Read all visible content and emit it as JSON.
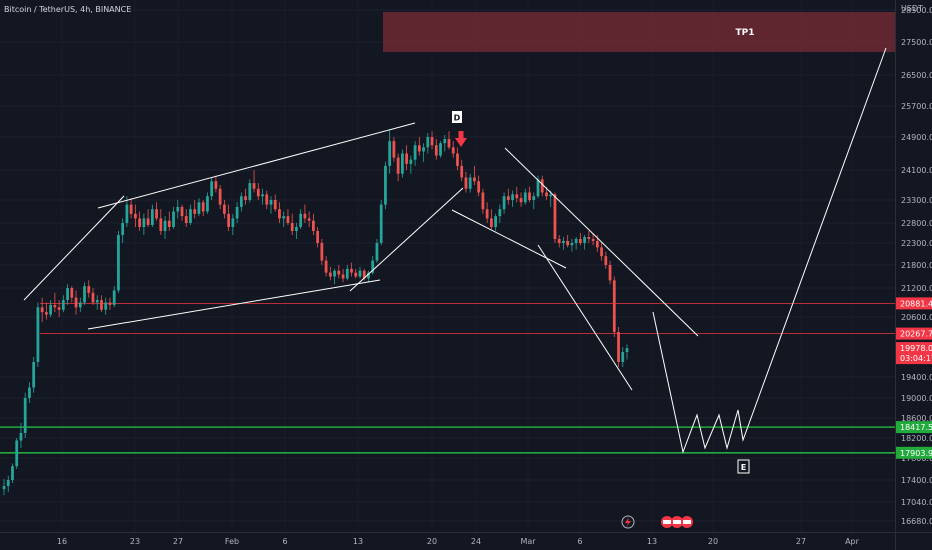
{
  "chart_data": {
    "type": "candlestick",
    "title": "Bitcoin / TetherUS, 4h, BINANCE",
    "y_unit": "USDT",
    "y_ticks": [
      16680,
      17040,
      17400,
      17800,
      18200,
      18600,
      19000,
      19400,
      20600,
      21200,
      21800,
      22300,
      22800,
      23300,
      24100,
      24900,
      25700,
      26500,
      27500,
      28300
    ],
    "x_ticks": [
      "16",
      "23",
      "27",
      "Feb",
      "6",
      "13",
      "20",
      "24",
      "Mar",
      "6",
      "13",
      "20",
      "27",
      "Apr"
    ],
    "price_lines": [
      {
        "label": "20881.45",
        "value": 20881.45,
        "color": "#f23645"
      },
      {
        "label": "20267.78",
        "value": 20267.78,
        "color": "#f23645"
      },
      {
        "label": "18417.53",
        "value": 18417.53,
        "color": "#22ab3c"
      },
      {
        "label": "17903.96",
        "value": 17903.96,
        "color": "#22ab3c"
      }
    ],
    "last_price": {
      "value": 19978.0,
      "label": "19978.00",
      "countdown": "03:04:17"
    },
    "tp_zone": {
      "label": "TP1",
      "low": 27200,
      "high": 28250
    },
    "annotations": [
      "D",
      "E"
    ],
    "candles": [
      {
        "o": 17250,
        "h": 17420,
        "l": 17150,
        "c": 17300
      },
      {
        "o": 17300,
        "h": 17480,
        "l": 17200,
        "c": 17400
      },
      {
        "o": 17400,
        "h": 17700,
        "l": 17350,
        "c": 17650
      },
      {
        "o": 17650,
        "h": 18200,
        "l": 17600,
        "c": 18150
      },
      {
        "o": 18150,
        "h": 18500,
        "l": 18000,
        "c": 18300
      },
      {
        "o": 18300,
        "h": 19100,
        "l": 18200,
        "c": 19000
      },
      {
        "o": 19000,
        "h": 19300,
        "l": 18900,
        "c": 19200
      },
      {
        "o": 19200,
        "h": 19800,
        "l": 19100,
        "c": 19700
      },
      {
        "o": 19700,
        "h": 20900,
        "l": 19600,
        "c": 20800
      },
      {
        "o": 20800,
        "h": 21000,
        "l": 20500,
        "c": 20700
      },
      {
        "o": 20700,
        "h": 20900,
        "l": 20550,
        "c": 20650
      },
      {
        "o": 20650,
        "h": 20950,
        "l": 20600,
        "c": 20850
      },
      {
        "o": 20850,
        "h": 21100,
        "l": 20700,
        "c": 20800
      },
      {
        "o": 20800,
        "h": 20950,
        "l": 20600,
        "c": 20750
      },
      {
        "o": 20750,
        "h": 21050,
        "l": 20700,
        "c": 20950
      },
      {
        "o": 20950,
        "h": 21300,
        "l": 20850,
        "c": 21200
      },
      {
        "o": 21200,
        "h": 21250,
        "l": 20900,
        "c": 21000
      },
      {
        "o": 21000,
        "h": 21150,
        "l": 20650,
        "c": 20800
      },
      {
        "o": 20800,
        "h": 21000,
        "l": 20700,
        "c": 20900
      },
      {
        "o": 20900,
        "h": 21350,
        "l": 20850,
        "c": 21250
      },
      {
        "o": 21250,
        "h": 21400,
        "l": 21000,
        "c": 21100
      },
      {
        "o": 21100,
        "h": 21200,
        "l": 20850,
        "c": 20900
      },
      {
        "o": 20900,
        "h": 21050,
        "l": 20750,
        "c": 20950
      },
      {
        "o": 20950,
        "h": 21050,
        "l": 20700,
        "c": 20750
      },
      {
        "o": 20750,
        "h": 21000,
        "l": 20650,
        "c": 20900
      },
      {
        "o": 20900,
        "h": 21000,
        "l": 20750,
        "c": 20850
      },
      {
        "o": 20850,
        "h": 21250,
        "l": 20800,
        "c": 21150
      },
      {
        "o": 21150,
        "h": 22600,
        "l": 21100,
        "c": 22500
      },
      {
        "o": 22500,
        "h": 22900,
        "l": 22300,
        "c": 22800
      },
      {
        "o": 22800,
        "h": 23400,
        "l": 22700,
        "c": 23200
      },
      {
        "o": 23200,
        "h": 23350,
        "l": 22900,
        "c": 23000
      },
      {
        "o": 23000,
        "h": 23200,
        "l": 22700,
        "c": 22900
      },
      {
        "o": 22900,
        "h": 23050,
        "l": 22600,
        "c": 22700
      },
      {
        "o": 22700,
        "h": 23000,
        "l": 22500,
        "c": 22900
      },
      {
        "o": 22900,
        "h": 23100,
        "l": 22700,
        "c": 22750
      },
      {
        "o": 22750,
        "h": 23200,
        "l": 22700,
        "c": 23100
      },
      {
        "o": 23100,
        "h": 23250,
        "l": 22850,
        "c": 22900
      },
      {
        "o": 22900,
        "h": 23100,
        "l": 22500,
        "c": 22600
      },
      {
        "o": 22600,
        "h": 22950,
        "l": 22400,
        "c": 22850
      },
      {
        "o": 22850,
        "h": 23050,
        "l": 22600,
        "c": 22700
      },
      {
        "o": 22700,
        "h": 23150,
        "l": 22650,
        "c": 23050
      },
      {
        "o": 23050,
        "h": 23300,
        "l": 22900,
        "c": 23150
      },
      {
        "o": 23150,
        "h": 23200,
        "l": 22850,
        "c": 22950
      },
      {
        "o": 22950,
        "h": 23100,
        "l": 22700,
        "c": 22800
      },
      {
        "o": 22800,
        "h": 23200,
        "l": 22750,
        "c": 23100
      },
      {
        "o": 23100,
        "h": 23300,
        "l": 22900,
        "c": 23000
      },
      {
        "o": 23000,
        "h": 23350,
        "l": 22950,
        "c": 23250
      },
      {
        "o": 23250,
        "h": 23300,
        "l": 22950,
        "c": 23050
      },
      {
        "o": 23050,
        "h": 23500,
        "l": 23000,
        "c": 23400
      },
      {
        "o": 23400,
        "h": 23900,
        "l": 23300,
        "c": 23800
      },
      {
        "o": 23800,
        "h": 23950,
        "l": 23500,
        "c": 23600
      },
      {
        "o": 23600,
        "h": 23700,
        "l": 23100,
        "c": 23200
      },
      {
        "o": 23200,
        "h": 23300,
        "l": 22900,
        "c": 23000
      },
      {
        "o": 23000,
        "h": 23200,
        "l": 22600,
        "c": 22700
      },
      {
        "o": 22700,
        "h": 23000,
        "l": 22500,
        "c": 22900
      },
      {
        "o": 22900,
        "h": 23250,
        "l": 22800,
        "c": 23150
      },
      {
        "o": 23150,
        "h": 23500,
        "l": 23050,
        "c": 23400
      },
      {
        "o": 23400,
        "h": 23600,
        "l": 23200,
        "c": 23300
      },
      {
        "o": 23300,
        "h": 23850,
        "l": 23250,
        "c": 23750
      },
      {
        "o": 23750,
        "h": 24100,
        "l": 23500,
        "c": 23600
      },
      {
        "o": 23600,
        "h": 23750,
        "l": 23300,
        "c": 23400
      },
      {
        "o": 23400,
        "h": 23600,
        "l": 23200,
        "c": 23450
      },
      {
        "o": 23450,
        "h": 23550,
        "l": 23100,
        "c": 23200
      },
      {
        "o": 23200,
        "h": 23400,
        "l": 23000,
        "c": 23300
      },
      {
        "o": 23300,
        "h": 23450,
        "l": 23050,
        "c": 23100
      },
      {
        "o": 23100,
        "h": 23250,
        "l": 22800,
        "c": 22900
      },
      {
        "o": 22900,
        "h": 23050,
        "l": 22700,
        "c": 22950
      },
      {
        "o": 22950,
        "h": 23100,
        "l": 22750,
        "c": 22800
      },
      {
        "o": 22800,
        "h": 23000,
        "l": 22500,
        "c": 22600
      },
      {
        "o": 22600,
        "h": 22800,
        "l": 22400,
        "c": 22700
      },
      {
        "o": 22700,
        "h": 23100,
        "l": 22650,
        "c": 23000
      },
      {
        "o": 23000,
        "h": 23200,
        "l": 22800,
        "c": 22900
      },
      {
        "o": 22900,
        "h": 23050,
        "l": 22700,
        "c": 22850
      },
      {
        "o": 22850,
        "h": 23000,
        "l": 22500,
        "c": 22600
      },
      {
        "o": 22600,
        "h": 22700,
        "l": 22200,
        "c": 22300
      },
      {
        "o": 22300,
        "h": 22400,
        "l": 21800,
        "c": 21900
      },
      {
        "o": 21900,
        "h": 22000,
        "l": 21500,
        "c": 21600
      },
      {
        "o": 21600,
        "h": 21750,
        "l": 21400,
        "c": 21500
      },
      {
        "o": 21500,
        "h": 21700,
        "l": 21300,
        "c": 21650
      },
      {
        "o": 21650,
        "h": 21800,
        "l": 21450,
        "c": 21550
      },
      {
        "o": 21550,
        "h": 21700,
        "l": 21350,
        "c": 21450
      },
      {
        "o": 21450,
        "h": 21800,
        "l": 21400,
        "c": 21700
      },
      {
        "o": 21700,
        "h": 21850,
        "l": 21500,
        "c": 21600
      },
      {
        "o": 21600,
        "h": 21700,
        "l": 21450,
        "c": 21500
      },
      {
        "o": 21500,
        "h": 21750,
        "l": 21450,
        "c": 21650
      },
      {
        "o": 21650,
        "h": 21700,
        "l": 21400,
        "c": 21450
      },
      {
        "o": 21450,
        "h": 21650,
        "l": 21350,
        "c": 21600
      },
      {
        "o": 21600,
        "h": 22000,
        "l": 21550,
        "c": 21900
      },
      {
        "o": 21900,
        "h": 22400,
        "l": 21850,
        "c": 22300
      },
      {
        "o": 22300,
        "h": 23300,
        "l": 22250,
        "c": 23200
      },
      {
        "o": 23200,
        "h": 24300,
        "l": 23100,
        "c": 24200
      },
      {
        "o": 24200,
        "h": 25100,
        "l": 24000,
        "c": 24800
      },
      {
        "o": 24800,
        "h": 24900,
        "l": 24300,
        "c": 24400
      },
      {
        "o": 24400,
        "h": 24500,
        "l": 23800,
        "c": 24000
      },
      {
        "o": 24000,
        "h": 24600,
        "l": 23900,
        "c": 24500
      },
      {
        "o": 24500,
        "h": 24700,
        "l": 24100,
        "c": 24250
      },
      {
        "o": 24250,
        "h": 24450,
        "l": 24000,
        "c": 24350
      },
      {
        "o": 24350,
        "h": 24800,
        "l": 24200,
        "c": 24700
      },
      {
        "o": 24700,
        "h": 24900,
        "l": 24450,
        "c": 24550
      },
      {
        "o": 24550,
        "h": 24750,
        "l": 24300,
        "c": 24650
      },
      {
        "o": 24650,
        "h": 25000,
        "l": 24500,
        "c": 24900
      },
      {
        "o": 24900,
        "h": 25050,
        "l": 24600,
        "c": 24700
      },
      {
        "o": 24700,
        "h": 24850,
        "l": 24350,
        "c": 24450
      },
      {
        "o": 24450,
        "h": 24800,
        "l": 24400,
        "c": 24750
      },
      {
        "o": 24750,
        "h": 24950,
        "l": 24550,
        "c": 24850
      },
      {
        "o": 24850,
        "h": 25050,
        "l": 24600,
        "c": 24650
      },
      {
        "o": 24650,
        "h": 24800,
        "l": 24400,
        "c": 24500
      },
      {
        "o": 24500,
        "h": 24650,
        "l": 24100,
        "c": 24200
      },
      {
        "o": 24200,
        "h": 24350,
        "l": 23800,
        "c": 23900
      },
      {
        "o": 23900,
        "h": 24050,
        "l": 23500,
        "c": 23600
      },
      {
        "o": 23600,
        "h": 24000,
        "l": 23500,
        "c": 23900
      },
      {
        "o": 23900,
        "h": 24200,
        "l": 23700,
        "c": 23800
      },
      {
        "o": 23800,
        "h": 23950,
        "l": 23400,
        "c": 23500
      },
      {
        "o": 23500,
        "h": 23600,
        "l": 23000,
        "c": 23100
      },
      {
        "o": 23100,
        "h": 23250,
        "l": 22800,
        "c": 22900
      },
      {
        "o": 22900,
        "h": 23100,
        "l": 22650,
        "c": 22700
      },
      {
        "o": 22700,
        "h": 23000,
        "l": 22600,
        "c": 22950
      },
      {
        "o": 22950,
        "h": 23200,
        "l": 22800,
        "c": 23100
      },
      {
        "o": 23100,
        "h": 23500,
        "l": 23000,
        "c": 23400
      },
      {
        "o": 23400,
        "h": 23600,
        "l": 23200,
        "c": 23300
      },
      {
        "o": 23300,
        "h": 23550,
        "l": 23150,
        "c": 23450
      },
      {
        "o": 23450,
        "h": 23650,
        "l": 23250,
        "c": 23350
      },
      {
        "o": 23350,
        "h": 23500,
        "l": 23150,
        "c": 23250
      },
      {
        "o": 23250,
        "h": 23600,
        "l": 23200,
        "c": 23500
      },
      {
        "o": 23500,
        "h": 23650,
        "l": 23250,
        "c": 23300
      },
      {
        "o": 23300,
        "h": 23500,
        "l": 23100,
        "c": 23400
      },
      {
        "o": 23400,
        "h": 23950,
        "l": 23350,
        "c": 23850
      },
      {
        "o": 23850,
        "h": 23950,
        "l": 23400,
        "c": 23500
      },
      {
        "o": 23500,
        "h": 23650,
        "l": 23300,
        "c": 23400
      },
      {
        "o": 23400,
        "h": 23550,
        "l": 23150,
        "c": 23450
      },
      {
        "o": 23450,
        "h": 23500,
        "l": 22300,
        "c": 22400
      },
      {
        "o": 22400,
        "h": 22500,
        "l": 22200,
        "c": 22300
      },
      {
        "o": 22300,
        "h": 22450,
        "l": 22150,
        "c": 22350
      },
      {
        "o": 22350,
        "h": 22500,
        "l": 22200,
        "c": 22250
      },
      {
        "o": 22250,
        "h": 22400,
        "l": 22100,
        "c": 22300
      },
      {
        "o": 22300,
        "h": 22450,
        "l": 22150,
        "c": 22400
      },
      {
        "o": 22400,
        "h": 22550,
        "l": 22250,
        "c": 22300
      },
      {
        "o": 22300,
        "h": 22500,
        "l": 22150,
        "c": 22450
      },
      {
        "o": 22450,
        "h": 22600,
        "l": 22300,
        "c": 22400
      },
      {
        "o": 22400,
        "h": 22550,
        "l": 22250,
        "c": 22350
      },
      {
        "o": 22350,
        "h": 22500,
        "l": 22100,
        "c": 22200
      },
      {
        "o": 22200,
        "h": 22300,
        "l": 21900,
        "c": 22000
      },
      {
        "o": 22000,
        "h": 22100,
        "l": 21700,
        "c": 21800
      },
      {
        "o": 21800,
        "h": 21900,
        "l": 21300,
        "c": 21400
      },
      {
        "o": 21400,
        "h": 21500,
        "l": 20200,
        "c": 20300
      },
      {
        "o": 20300,
        "h": 20400,
        "l": 19600,
        "c": 19700
      },
      {
        "o": 19700,
        "h": 20000,
        "l": 19600,
        "c": 19900
      },
      {
        "o": 19900,
        "h": 20050,
        "l": 19750,
        "c": 19978
      }
    ]
  },
  "legend": {
    "title": "Bitcoin / TetherUS, 4h, BINANCE",
    "currency": "USDT",
    "tp_label": "TP1",
    "label_d": "D",
    "label_e": "E"
  }
}
